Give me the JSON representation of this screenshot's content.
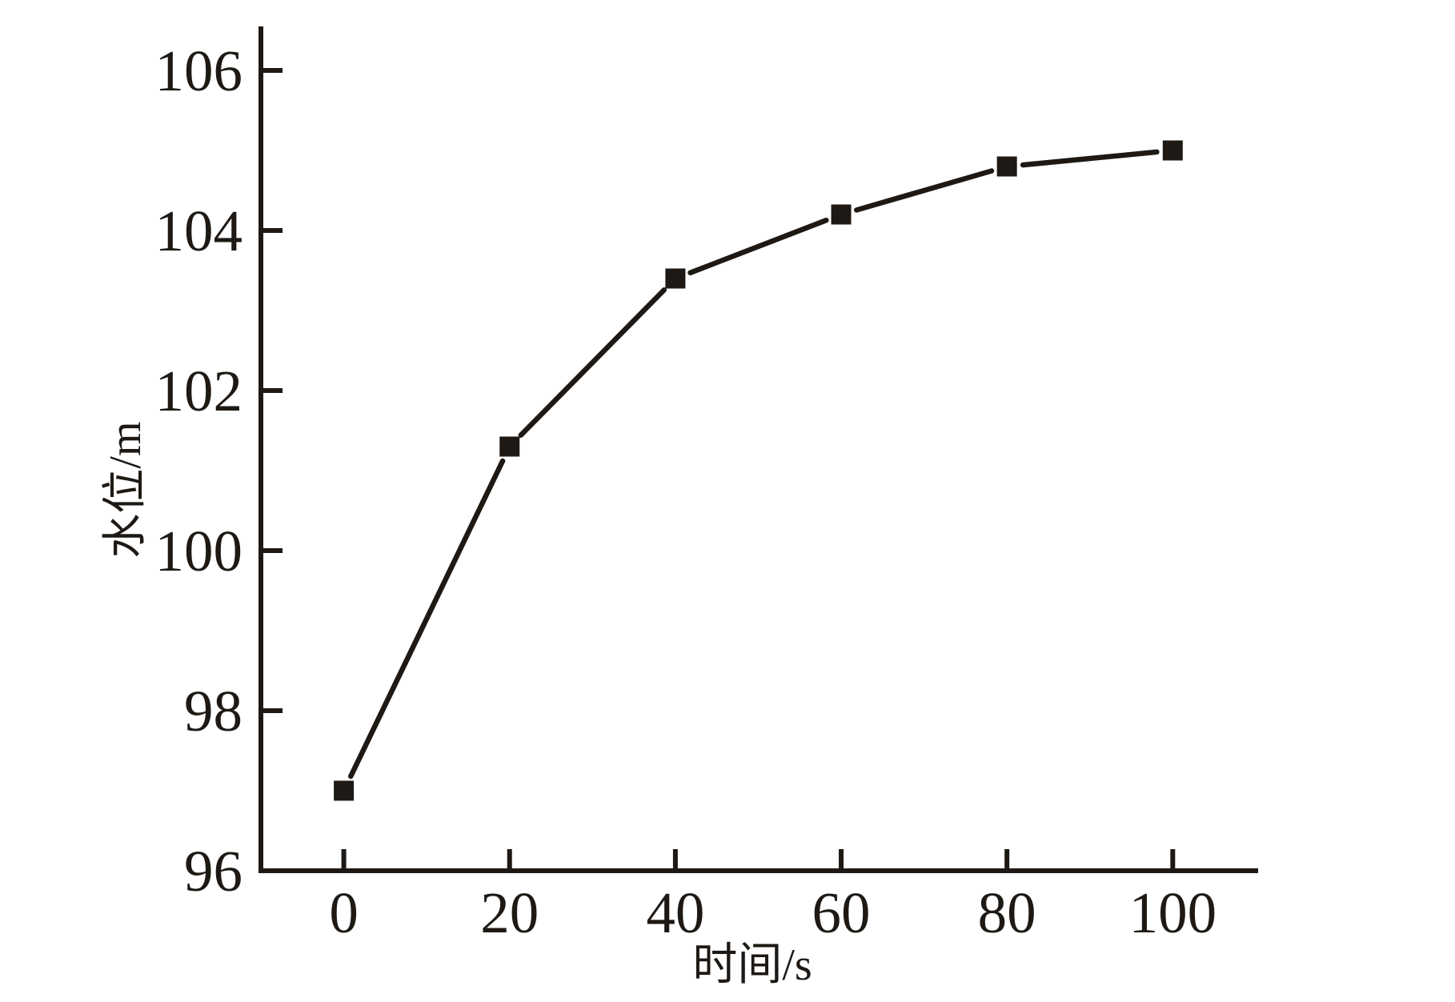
{
  "figure": {
    "background": "#ffffff",
    "ink_color": "#1e1914"
  },
  "chart_data": {
    "type": "line",
    "title": "",
    "xlabel": "时间/s",
    "ylabel": "水位/m",
    "x": [
      0,
      20,
      40,
      60,
      80,
      100
    ],
    "series": [
      {
        "name": "水位",
        "values": [
          97.0,
          101.3,
          103.4,
          104.2,
          104.8,
          105.0
        ]
      }
    ],
    "x_tick_labels": [
      "0",
      "20",
      "40",
      "60",
      "80",
      "100"
    ],
    "x_ticks": [
      0,
      20,
      40,
      60,
      80,
      100
    ],
    "y_tick_labels": [
      "96",
      "98",
      "100",
      "102",
      "104",
      "106"
    ],
    "y_ticks": [
      96,
      98,
      100,
      102,
      104,
      106
    ],
    "xlim": [
      -10,
      110.3
    ],
    "ylim": [
      96,
      106.55
    ],
    "grid": false,
    "legend_position": "none",
    "marker": "filled-square",
    "line_color": "#1e1914",
    "marker_color": "#1e1914"
  }
}
